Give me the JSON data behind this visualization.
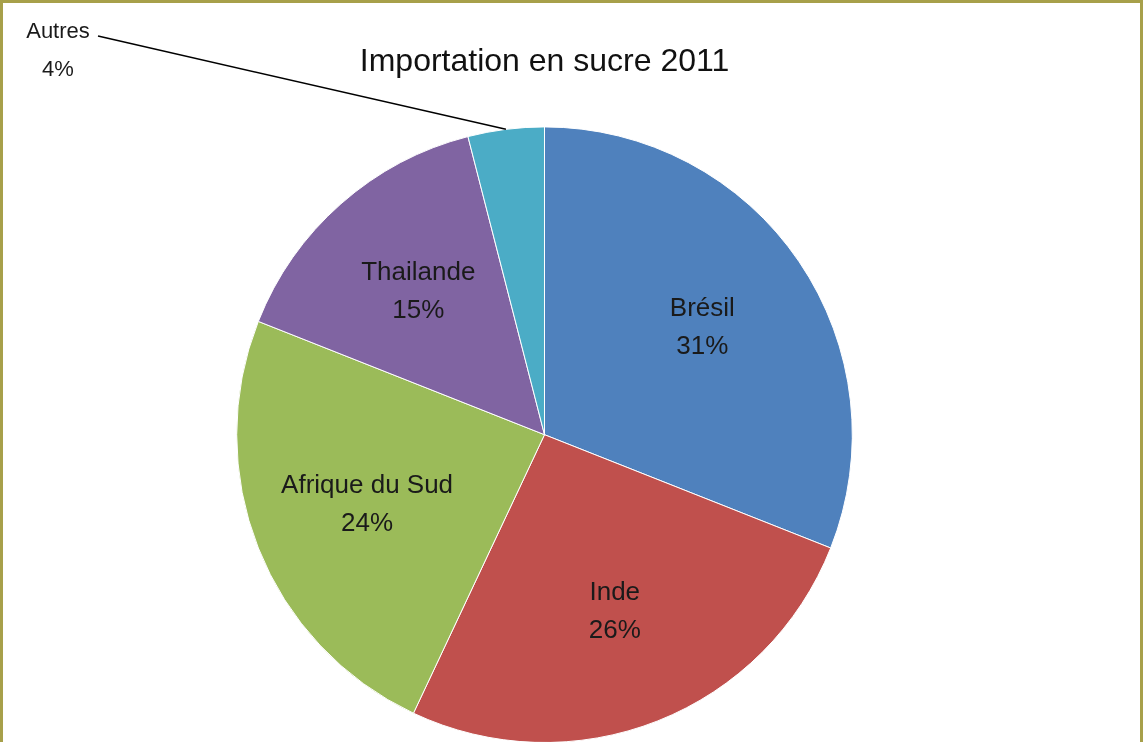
{
  "chart_data": {
    "type": "pie",
    "title": "Importation en sucre 2011",
    "categories": [
      "Brésil",
      "Inde",
      "Afrique du Sud",
      "Thailande",
      "Autres"
    ],
    "values": [
      31,
      26,
      24,
      15,
      4
    ],
    "value_labels": [
      "31%",
      "26%",
      "24%",
      "15%",
      "4%"
    ],
    "colors": [
      "#4f81bd",
      "#c0504d",
      "#9bbb59",
      "#8064a2",
      "#4bacc6"
    ],
    "legend": false
  }
}
